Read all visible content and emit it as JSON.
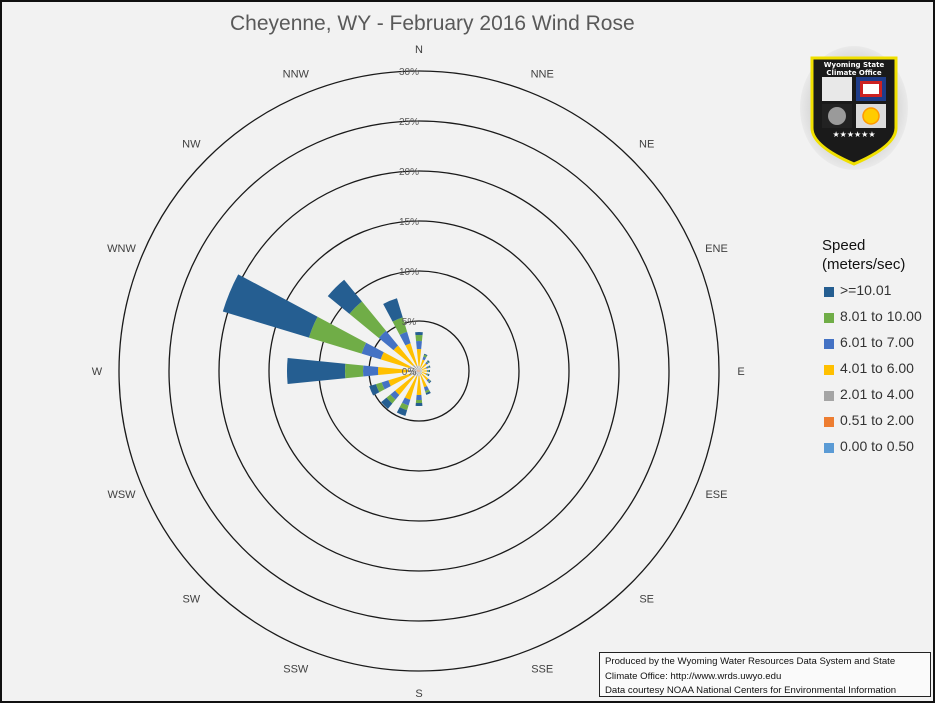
{
  "title": "Cheyenne, WY - February 2016 Wind Rose",
  "legend": {
    "title_line1": "Speed",
    "title_line2": "(meters/sec)",
    "items": [
      {
        "label": ">=10.01",
        "color": "#255e91"
      },
      {
        "label": "8.01 to 10.00",
        "color": "#70ad47"
      },
      {
        "label": "6.01 to 7.00",
        "color": "#4472c4"
      },
      {
        "label": "4.01 to 6.00",
        "color": "#ffc000"
      },
      {
        "label": "2.01 to 4.00",
        "color": "#a5a5a5"
      },
      {
        "label": "0.51 to 2.00",
        "color": "#ed7d31"
      },
      {
        "label": "0.00 to 0.50",
        "color": "#5b9bd5"
      }
    ]
  },
  "credit": {
    "line1": "Produced by the Wyoming Water Resources Data System and State",
    "line2": "Climate Office: http://www.wrds.uwyo.edu",
    "line3": "Data courtesy NOAA National Centers for Environmental Information"
  },
  "logo": {
    "line1": "Wyoming State",
    "line2": "Climate Office"
  },
  "chart_data": {
    "type": "radar-stacked-bar",
    "title": "Cheyenne, WY - February 2016 Wind Rose",
    "directions": [
      "N",
      "NNE",
      "NE",
      "ENE",
      "E",
      "ESE",
      "SE",
      "SSE",
      "S",
      "SSW",
      "SW",
      "WSW",
      "W",
      "WNW",
      "NW",
      "NNW"
    ],
    "radial_ticks": [
      "0%",
      "5%",
      "10%",
      "15%",
      "20%",
      "25%",
      "30%"
    ],
    "radial_range": [
      0,
      30
    ],
    "series": [
      {
        "name": "0.00 to 0.50",
        "color": "#5b9bd5",
        "values": [
          0,
          0,
          0,
          0,
          0,
          0,
          0,
          0,
          0,
          0,
          0,
          0,
          0,
          0,
          0,
          0
        ]
      },
      {
        "name": "0.51 to 2.00",
        "color": "#ed7d31",
        "values": [
          0.1,
          0.1,
          0.1,
          0.1,
          0.1,
          0.1,
          0.1,
          0.1,
          0.1,
          0.1,
          0.1,
          0.1,
          0.2,
          0.2,
          0.1,
          0.1
        ]
      },
      {
        "name": "2.01 to 4.00",
        "color": "#a5a5a5",
        "values": [
          0.4,
          0.3,
          0.3,
          0.2,
          0.2,
          0.2,
          0.3,
          0.3,
          0.4,
          0.5,
          0.6,
          0.8,
          0.9,
          0.8,
          0.7,
          0.5
        ]
      },
      {
        "name": "4.01 to 6.00",
        "color": "#ffc000",
        "values": [
          1.7,
          0.8,
          0.6,
          0.5,
          0.5,
          0.5,
          0.8,
          1.3,
          1.9,
          2.4,
          2.4,
          2.3,
          3.0,
          3.0,
          2.5,
          2.3
        ]
      },
      {
        "name": "6.01 to 7.00",
        "color": "#4472c4",
        "values": [
          0.8,
          0.3,
          0.2,
          0.2,
          0.1,
          0.1,
          0.2,
          0.4,
          0.5,
          0.6,
          0.6,
          0.7,
          1.5,
          2.0,
          1.9,
          1.2
        ]
      },
      {
        "name": "8.01 to 10.00",
        "color": "#70ad47",
        "values": [
          0.6,
          0.2,
          0.1,
          0.1,
          0.1,
          0.1,
          0.1,
          0.2,
          0.3,
          0.5,
          0.5,
          0.6,
          1.8,
          5.5,
          3.8,
          1.5
        ]
      },
      {
        "name": ">=10.01",
        "color": "#255e91",
        "values": [
          0.3,
          0.1,
          0.1,
          0.1,
          0.1,
          0.1,
          0.1,
          0.2,
          0.3,
          0.6,
          0.7,
          0.7,
          5.8,
          9.0,
          2.8,
          2.0
        ]
      }
    ]
  }
}
